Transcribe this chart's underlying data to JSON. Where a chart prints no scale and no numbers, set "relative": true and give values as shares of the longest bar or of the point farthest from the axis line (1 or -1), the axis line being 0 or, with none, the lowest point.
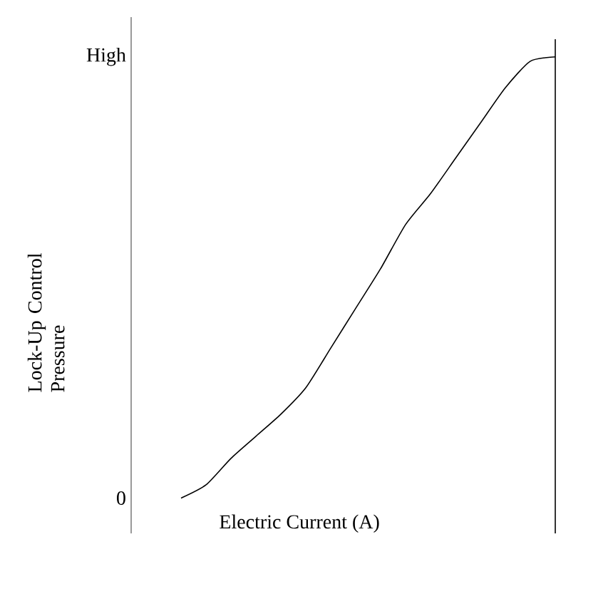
{
  "chart_data": {
    "type": "line",
    "relative": true,
    "xlabel": "Electric Current (A)",
    "ylabel": "Lock-Up Control Pressure",
    "categories": [
      null,
      null,
      null,
      null,
      null,
      null,
      null,
      null,
      null,
      null,
      null,
      null,
      null,
      null,
      null,
      null,
      null,
      null,
      null,
      null
    ],
    "values": [
      null,
      null,
      0,
      0.03,
      0.09,
      0.14,
      0.19,
      0.25,
      0.34,
      0.43,
      0.52,
      0.62,
      0.69,
      0.77,
      0.85,
      0.93,
      0.99,
      1,
      null,
      null
    ],
    "color": "#000000",
    "marker": "none",
    "line_style": "solid",
    "annotations": [
      "0",
      "High"
    ]
  }
}
